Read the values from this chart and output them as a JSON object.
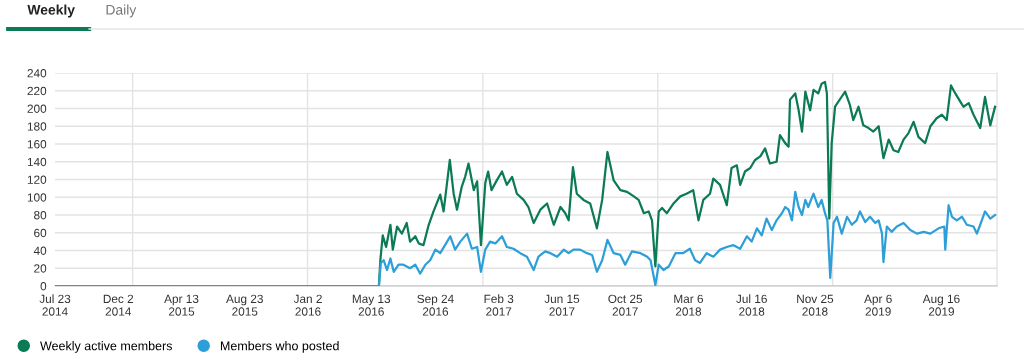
{
  "chart_data": {
    "type": "line",
    "annotations": [
      "Weekly",
      "Daily"
    ],
    "xlim": [
      "2014-07-23",
      "2019-12-10"
    ],
    "xticks": [
      {
        "value": "2014-07-23",
        "label": "Jul 23\n2014"
      },
      {
        "value": "2014-12-02",
        "label": "Dec 2\n2014"
      },
      {
        "value": "2015-04-13",
        "label": "Apr 13\n2015"
      },
      {
        "value": "2015-08-23",
        "label": "Aug 23\n2015"
      },
      {
        "value": "2016-01-02",
        "label": "Jan 2\n2016"
      },
      {
        "value": "2016-05-13",
        "label": "May 13\n2016"
      },
      {
        "value": "2016-09-24",
        "label": "Sep 24\n2016"
      },
      {
        "value": "2017-02-03",
        "label": "Feb 3\n2017"
      },
      {
        "value": "2017-06-15",
        "label": "Jun 15\n2017"
      },
      {
        "value": "2017-10-25",
        "label": "Oct 25\n2017"
      },
      {
        "value": "2018-03-06",
        "label": "Mar 6\n2018"
      },
      {
        "value": "2018-07-16",
        "label": "Jul 16\n2018"
      },
      {
        "value": "2018-11-25",
        "label": "Nov 25\n2018"
      },
      {
        "value": "2019-04-06",
        "label": "Apr 6\n2019"
      },
      {
        "value": "2019-08-16",
        "label": "Aug 16\n2019"
      }
    ],
    "ylim": [
      0,
      240
    ],
    "yticks": [
      0,
      20,
      40,
      60,
      80,
      100,
      120,
      140,
      160,
      180,
      200,
      220,
      240
    ],
    "grid": "y",
    "legend": "bottom left",
    "ref_lines": [
      {
        "axis": "x",
        "value": "2015-01-01",
        "color": "#e3e3e3"
      },
      {
        "axis": "x",
        "value": "2016-01-01",
        "color": "#e3e3e3"
      },
      {
        "axis": "x",
        "value": "2017-01-01",
        "color": "#e3e3e3"
      },
      {
        "axis": "x",
        "value": "2018-01-01",
        "color": "#e3e3e3"
      },
      {
        "axis": "x",
        "value": "2019-01-01",
        "color": "#e3e3e3"
      }
    ],
    "series": [
      {
        "name": "Weekly active members",
        "color": "#0b7a55",
        "x": [
          "2014-07-23",
          "2016-05-29",
          "2016-06-01",
          "2016-06-06",
          "2016-06-13",
          "2016-06-22",
          "2016-06-27",
          "2016-07-06",
          "2016-07-16",
          "2016-07-26",
          "2016-08-02",
          "2016-08-13",
          "2016-08-20",
          "2016-08-30",
          "2016-09-10",
          "2016-09-20",
          "2016-10-04",
          "2016-10-11",
          "2016-10-24",
          "2016-11-01",
          "2016-11-08",
          "2016-11-18",
          "2016-11-25",
          "2016-12-02",
          "2016-12-13",
          "2016-12-20",
          "2016-12-28",
          "2017-01-06",
          "2017-01-12",
          "2017-01-19",
          "2017-01-30",
          "2017-02-10",
          "2017-02-20",
          "2017-03-03",
          "2017-03-13",
          "2017-03-27",
          "2017-04-06",
          "2017-04-17",
          "2017-05-01",
          "2017-05-15",
          "2017-05-29",
          "2017-06-12",
          "2017-06-22",
          "2017-06-29",
          "2017-07-08",
          "2017-07-16",
          "2017-07-30",
          "2017-08-13",
          "2017-08-27",
          "2017-09-07",
          "2017-09-18",
          "2017-10-01",
          "2017-10-15",
          "2017-10-29",
          "2017-11-12",
          "2017-11-22",
          "2017-12-03",
          "2017-12-13",
          "2017-12-20",
          "2017-12-27",
          "2018-01-03",
          "2018-01-10",
          "2018-01-20",
          "2018-02-03",
          "2018-02-17",
          "2018-03-02",
          "2018-03-16",
          "2018-03-27",
          "2018-04-06",
          "2018-04-20",
          "2018-04-27",
          "2018-05-11",
          "2018-05-25",
          "2018-06-04",
          "2018-06-15",
          "2018-06-22",
          "2018-07-02",
          "2018-07-13",
          "2018-07-23",
          "2018-08-03",
          "2018-08-13",
          "2018-08-23",
          "2018-09-06",
          "2018-09-13",
          "2018-09-24",
          "2018-10-01",
          "2018-10-04",
          "2018-10-15",
          "2018-10-22",
          "2018-10-29",
          "2018-11-05",
          "2018-11-15",
          "2018-11-22",
          "2018-12-02",
          "2018-12-09",
          "2018-12-16",
          "2018-12-20",
          "2018-12-25",
          "2018-12-30",
          "2019-01-06",
          "2019-01-17",
          "2019-01-27",
          "2019-02-06",
          "2019-02-13",
          "2019-02-24",
          "2019-03-06",
          "2019-03-17",
          "2019-03-27",
          "2019-04-07",
          "2019-04-17",
          "2019-04-28",
          "2019-05-08",
          "2019-05-18",
          "2019-05-29",
          "2019-06-08",
          "2019-06-19",
          "2019-06-29",
          "2019-07-13",
          "2019-07-24",
          "2019-08-06",
          "2019-08-17",
          "2019-08-27",
          "2019-09-05",
          "2019-09-14",
          "2019-09-24",
          "2019-10-01",
          "2019-10-12",
          "2019-10-22",
          "2019-11-05",
          "2019-11-15",
          "2019-11-26",
          "2019-12-06"
        ],
        "values": [
          0,
          0,
          29,
          57,
          44,
          69,
          41,
          67,
          59,
          71,
          50,
          56,
          48,
          46,
          69,
          84,
          103,
          84,
          142,
          104,
          86,
          112,
          123,
          138,
          108,
          118,
          46,
          116,
          129,
          108,
          119,
          129,
          114,
          123,
          104,
          97,
          89,
          71,
          86,
          93,
          69,
          89,
          82,
          74,
          134,
          104,
          97,
          93,
          65,
          97,
          151,
          119,
          108,
          106,
          101,
          97,
          82,
          84,
          74,
          22,
          84,
          88,
          82,
          93,
          101,
          104,
          108,
          74,
          97,
          104,
          121,
          114,
          91,
          133,
          136,
          114,
          129,
          133,
          142,
          146,
          155,
          138,
          140,
          170,
          161,
          157,
          210,
          217,
          198,
          174,
          219,
          198,
          221,
          217,
          228,
          230,
          217,
          76,
          161,
          202,
          211,
          219,
          204,
          187,
          202,
          181,
          178,
          174,
          180,
          144,
          165,
          153,
          151,
          165,
          172,
          185,
          168,
          161,
          180,
          189,
          193,
          187,
          226,
          217,
          208,
          202,
          206,
          193,
          178,
          213,
          181,
          202
        ]
      },
      {
        "name": "Members who posted",
        "color": "#2d9fd8",
        "x": [
          "2014-07-23",
          "2016-05-29",
          "2016-06-02",
          "2016-06-08",
          "2016-06-15",
          "2016-06-22",
          "2016-06-29",
          "2016-07-09",
          "2016-07-19",
          "2016-08-02",
          "2016-08-13",
          "2016-08-23",
          "2016-09-03",
          "2016-09-13",
          "2016-09-24",
          "2016-10-04",
          "2016-10-14",
          "2016-10-25",
          "2016-11-04",
          "2016-11-15",
          "2016-11-29",
          "2016-12-09",
          "2016-12-20",
          "2016-12-28",
          "2017-01-06",
          "2017-01-16",
          "2017-01-27",
          "2017-02-10",
          "2017-02-20",
          "2017-03-06",
          "2017-03-20",
          "2017-04-03",
          "2017-04-17",
          "2017-04-27",
          "2017-05-11",
          "2017-05-22",
          "2017-06-05",
          "2017-06-19",
          "2017-06-29",
          "2017-07-09",
          "2017-07-23",
          "2017-08-06",
          "2017-08-17",
          "2017-08-27",
          "2017-09-07",
          "2017-09-18",
          "2017-10-01",
          "2017-10-15",
          "2017-10-25",
          "2017-11-08",
          "2017-11-26",
          "2017-12-10",
          "2017-12-17",
          "2017-12-27",
          "2018-01-03",
          "2018-01-13",
          "2018-01-24",
          "2018-02-07",
          "2018-02-23",
          "2018-03-09",
          "2018-03-20",
          "2018-03-30",
          "2018-04-13",
          "2018-04-27",
          "2018-05-11",
          "2018-05-25",
          "2018-06-08",
          "2018-06-22",
          "2018-07-06",
          "2018-07-16",
          "2018-07-27",
          "2018-08-06",
          "2018-08-16",
          "2018-08-27",
          "2018-09-06",
          "2018-09-17",
          "2018-09-24",
          "2018-10-01",
          "2018-10-08",
          "2018-10-15",
          "2018-10-22",
          "2018-10-29",
          "2018-11-05",
          "2018-11-11",
          "2018-11-22",
          "2018-12-02",
          "2018-12-09",
          "2018-12-16",
          "2018-12-21",
          "2018-12-27",
          "2019-01-03",
          "2019-01-10",
          "2019-01-20",
          "2019-01-31",
          "2019-02-10",
          "2019-02-20",
          "2019-02-27",
          "2019-03-10",
          "2019-03-20",
          "2019-03-31",
          "2019-04-07",
          "2019-04-14",
          "2019-04-17",
          "2019-04-24",
          "2019-05-04",
          "2019-05-15",
          "2019-05-29",
          "2019-06-12",
          "2019-06-26",
          "2019-07-10",
          "2019-07-24",
          "2019-08-10",
          "2019-08-22",
          "2019-08-24",
          "2019-08-31",
          "2019-09-07",
          "2019-09-17",
          "2019-09-28",
          "2019-10-08",
          "2019-10-22",
          "2019-10-29",
          "2019-11-05",
          "2019-11-15",
          "2019-11-26",
          "2019-12-06"
        ],
        "values": [
          0,
          0,
          26,
          29,
          18,
          31,
          16,
          24,
          24,
          20,
          24,
          14,
          24,
          29,
          41,
          37,
          46,
          56,
          41,
          50,
          59,
          42,
          44,
          16,
          41,
          50,
          48,
          56,
          44,
          42,
          37,
          33,
          18,
          33,
          39,
          37,
          33,
          41,
          37,
          41,
          41,
          37,
          35,
          16,
          29,
          52,
          37,
          35,
          24,
          39,
          37,
          33,
          29,
          1,
          24,
          18,
          22,
          37,
          37,
          42,
          29,
          26,
          37,
          33,
          41,
          44,
          46,
          42,
          56,
          50,
          65,
          57,
          76,
          63,
          74,
          82,
          89,
          86,
          74,
          106,
          89,
          80,
          97,
          89,
          104,
          89,
          97,
          82,
          74,
          9,
          71,
          78,
          59,
          78,
          69,
          74,
          84,
          72,
          78,
          71,
          74,
          59,
          27,
          67,
          61,
          67,
          71,
          63,
          59,
          61,
          59,
          65,
          67,
          41,
          91,
          78,
          74,
          78,
          69,
          67,
          59,
          69,
          84,
          76,
          80
        ]
      }
    ]
  }
}
